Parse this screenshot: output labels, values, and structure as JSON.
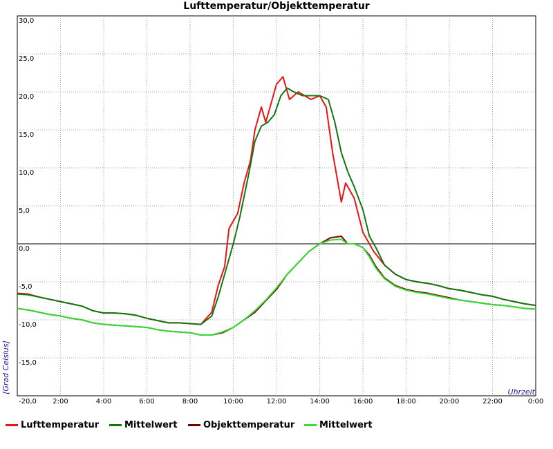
{
  "chart_data": {
    "type": "line",
    "title": "Lufttemperatur/Objekttemperatur",
    "xlabel": "Uhrzeit",
    "ylabel": "[Grad Celsius]",
    "xlim": [
      0,
      24
    ],
    "ylim": [
      -20,
      30
    ],
    "grid": true,
    "legend_position": "bottom",
    "x_ticks": [
      {
        "x": 0,
        "label": "-20,0"
      },
      {
        "x": 2,
        "label": "2:00"
      },
      {
        "x": 4,
        "label": "4:00"
      },
      {
        "x": 6,
        "label": "6:00"
      },
      {
        "x": 8,
        "label": "8:00"
      },
      {
        "x": 10,
        "label": "10:00"
      },
      {
        "x": 12,
        "label": "12:00"
      },
      {
        "x": 14,
        "label": "14:00"
      },
      {
        "x": 16,
        "label": "16:00"
      },
      {
        "x": 18,
        "label": "18:00"
      },
      {
        "x": 20,
        "label": "20:00"
      },
      {
        "x": 22,
        "label": "22:00"
      },
      {
        "x": 24,
        "label": "0:00"
      }
    ],
    "y_ticks": [
      {
        "y": 30,
        "label": "30,0"
      },
      {
        "y": 25,
        "label": "25,0"
      },
      {
        "y": 20,
        "label": "20,0"
      },
      {
        "y": 15,
        "label": "15,0"
      },
      {
        "y": 10,
        "label": "10,0"
      },
      {
        "y": 5,
        "label": "5,0"
      },
      {
        "y": 0,
        "label": "0,0"
      },
      {
        "y": -5,
        "label": "-5,0"
      },
      {
        "y": -10,
        "label": "-10,0"
      },
      {
        "y": -15,
        "label": "-15,0"
      }
    ],
    "series": [
      {
        "name": "Lufttemperatur",
        "color": "#ee1111",
        "x": [
          0,
          0.5,
          1,
          1.5,
          2,
          2.5,
          3,
          3.5,
          4,
          4.5,
          5,
          5.5,
          6,
          6.5,
          7,
          7.5,
          8,
          8.5,
          9,
          9.3,
          9.6,
          9.8,
          10,
          10.2,
          10.5,
          10.8,
          11,
          11.3,
          11.5,
          11.8,
          12,
          12.3,
          12.6,
          13,
          13.3,
          13.6,
          14,
          14.3,
          14.6,
          15,
          15.2,
          15.4,
          15.6,
          16,
          16.3,
          16.5,
          17,
          17.5,
          18,
          18.5,
          19,
          19.5,
          20,
          20.5,
          21,
          21.5,
          22,
          22.5,
          23,
          23.5,
          24
        ],
        "values": [
          -6.5,
          -6.6,
          -7.0,
          -7.3,
          -7.6,
          -7.9,
          -8.2,
          -8.8,
          -9.1,
          -9.1,
          -9.2,
          -9.4,
          -9.8,
          -10.1,
          -10.4,
          -10.4,
          -10.5,
          -10.6,
          -9.0,
          -5.5,
          -3.0,
          2.0,
          3.0,
          4.0,
          8.0,
          11.0,
          15.0,
          18.0,
          16.0,
          19.0,
          21.0,
          22.0,
          19.0,
          20.0,
          19.5,
          19.0,
          19.5,
          18.0,
          12.0,
          5.5,
          8.0,
          7.0,
          6.0,
          1.5,
          0.0,
          -1.0,
          -2.8,
          -4.0,
          -4.7,
          -5.0,
          -5.2,
          -5.5,
          -5.9,
          -6.1,
          -6.4,
          -6.7,
          -6.9,
          -7.3,
          -7.6,
          -7.9,
          -8.1
        ]
      },
      {
        "name": "Mittelwert",
        "color": "#117711",
        "x": [
          0,
          0.5,
          1,
          1.5,
          2,
          2.5,
          3,
          3.5,
          4,
          4.5,
          5,
          5.5,
          6,
          6.5,
          7,
          7.5,
          8,
          8.5,
          9,
          9.3,
          9.6,
          10,
          10.3,
          10.7,
          11,
          11.3,
          11.6,
          11.9,
          12.2,
          12.5,
          12.8,
          13.2,
          13.6,
          14,
          14.4,
          14.7,
          15,
          15.3,
          15.6,
          16,
          16.3,
          16.6,
          17,
          17.5,
          18,
          18.5,
          19,
          19.5,
          20,
          20.5,
          21,
          21.5,
          22,
          22.5,
          23,
          23.5,
          24
        ],
        "values": [
          -6.6,
          -6.7,
          -7.0,
          -7.3,
          -7.6,
          -7.9,
          -8.2,
          -8.8,
          -9.1,
          -9.1,
          -9.2,
          -9.4,
          -9.8,
          -10.1,
          -10.4,
          -10.4,
          -10.5,
          -10.6,
          -9.5,
          -7.0,
          -4.0,
          0.0,
          3.5,
          9.0,
          13.5,
          15.5,
          16.0,
          17.0,
          19.5,
          20.5,
          20.0,
          19.5,
          19.5,
          19.5,
          19.0,
          16.0,
          12.0,
          9.5,
          7.5,
          4.5,
          1.0,
          -0.5,
          -2.8,
          -4.0,
          -4.7,
          -5.0,
          -5.2,
          -5.5,
          -5.9,
          -6.1,
          -6.4,
          -6.7,
          -6.9,
          -7.3,
          -7.6,
          -7.9,
          -8.1
        ]
      },
      {
        "name": "Objekttemperatur",
        "color": "#770000",
        "x": [
          0,
          0.5,
          1,
          1.5,
          2,
          2.5,
          3,
          3.5,
          4,
          4.5,
          5,
          5.5,
          6,
          6.5,
          7,
          7.5,
          8,
          8.5,
          9,
          9.5,
          10,
          10.5,
          11,
          11.5,
          12,
          12.5,
          13,
          13.5,
          14,
          14.5,
          15,
          15.3,
          15.6,
          16,
          16.3,
          16.6,
          17,
          17.5,
          18,
          18.5,
          19,
          19.5,
          20,
          20.5,
          21,
          21.5,
          22,
          22.5,
          23,
          23.5,
          24
        ],
        "values": [
          -8.5,
          -8.7,
          -9.0,
          -9.3,
          -9.5,
          -9.8,
          -10.0,
          -10.4,
          -10.6,
          -10.7,
          -10.8,
          -10.9,
          -11.0,
          -11.3,
          -11.5,
          -11.6,
          -11.7,
          -12.0,
          -12.0,
          -11.7,
          -11.0,
          -10.0,
          -9.0,
          -7.5,
          -6.0,
          -4.0,
          -2.5,
          -1.0,
          0.0,
          0.8,
          1.0,
          0.0,
          0.0,
          -0.5,
          -1.5,
          -3.0,
          -4.5,
          -5.5,
          -6.0,
          -6.3,
          -6.5,
          -6.8,
          -7.1,
          -7.4,
          -7.6,
          -7.8,
          -8.0,
          -8.1,
          -8.3,
          -8.5,
          -8.6
        ]
      },
      {
        "name": "Mittelwert",
        "color": "#33dd33",
        "x": [
          0,
          0.5,
          1,
          1.5,
          2,
          2.5,
          3,
          3.5,
          4,
          4.5,
          5,
          5.5,
          6,
          6.5,
          7,
          7.5,
          8,
          8.5,
          9,
          9.5,
          10,
          10.5,
          11,
          11.5,
          12,
          12.5,
          13,
          13.5,
          14,
          14.5,
          15,
          15.3,
          15.6,
          16,
          16.3,
          16.6,
          17,
          17.5,
          18,
          18.5,
          19,
          19.5,
          20,
          20.5,
          21,
          21.5,
          22,
          22.5,
          23,
          23.5,
          24
        ],
        "values": [
          -8.5,
          -8.7,
          -9.0,
          -9.3,
          -9.5,
          -9.8,
          -10.0,
          -10.4,
          -10.6,
          -10.7,
          -10.8,
          -10.9,
          -11.0,
          -11.3,
          -11.5,
          -11.6,
          -11.7,
          -12.0,
          -12.0,
          -11.6,
          -11.0,
          -10.0,
          -8.8,
          -7.4,
          -5.8,
          -4.0,
          -2.5,
          -1.0,
          0.0,
          0.5,
          0.6,
          0.0,
          0.0,
          -0.5,
          -1.7,
          -3.2,
          -4.6,
          -5.6,
          -6.1,
          -6.4,
          -6.6,
          -6.9,
          -7.2,
          -7.4,
          -7.6,
          -7.8,
          -8.0,
          -8.1,
          -8.3,
          -8.5,
          -8.6
        ]
      }
    ]
  }
}
